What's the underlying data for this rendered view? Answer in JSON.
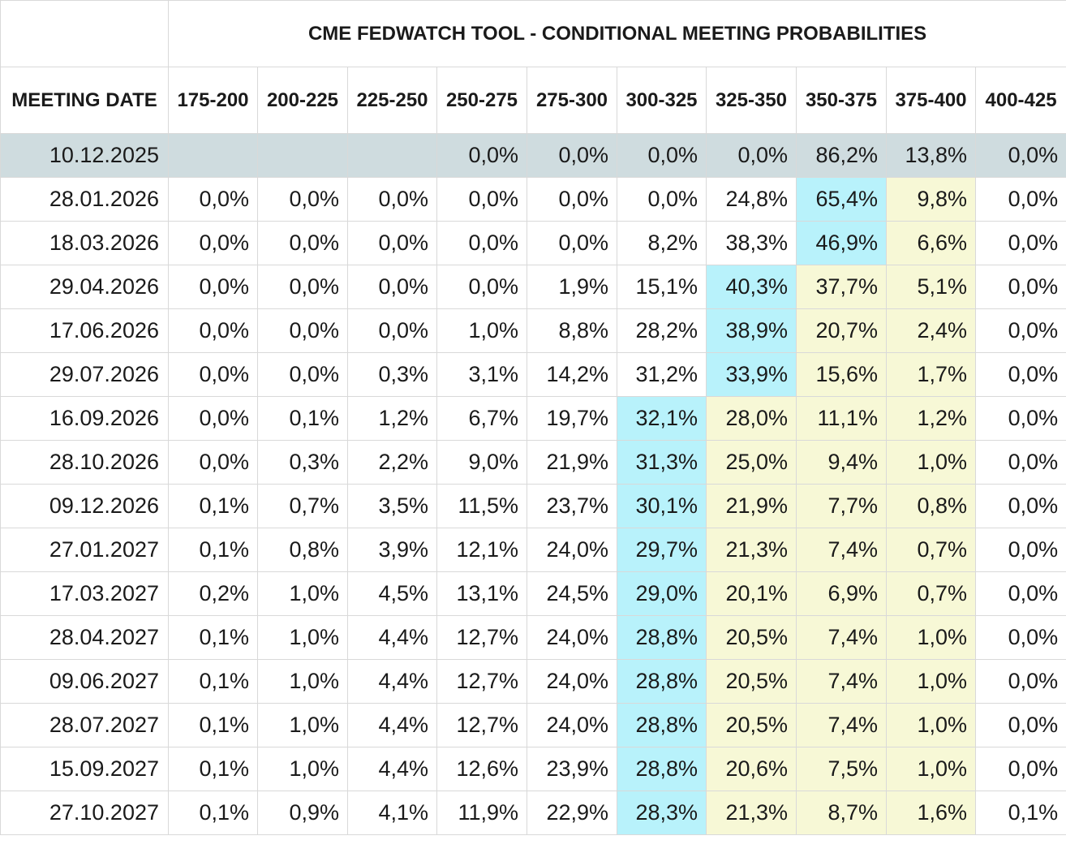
{
  "title": "CME FEDWATCH TOOL - CONDITIONAL MEETING PROBABILITIES",
  "columns": [
    "MEETING DATE",
    "175-200",
    "200-225",
    "225-250",
    "250-275",
    "275-300",
    "300-325",
    "325-350",
    "350-375",
    "375-400",
    "400-425"
  ],
  "colors": {
    "current_row": "#cfdcdf",
    "highlight_max": "#b8f2fb",
    "highlight_secondary": "#f7f8d6"
  },
  "chart_data": {
    "type": "table",
    "title": "CME FEDWATCH TOOL - CONDITIONAL MEETING PROBABILITIES",
    "columns": [
      "MEETING DATE",
      "175-200",
      "200-225",
      "225-250",
      "250-275",
      "275-300",
      "300-325",
      "325-350",
      "350-375",
      "375-400",
      "400-425"
    ],
    "rows": [
      {
        "date": "10.12.2025",
        "values": [
          "",
          "",
          "",
          "0,0%",
          "0,0%",
          "0,0%",
          "0,0%",
          "86,2%",
          "13,8%",
          "0,0%"
        ],
        "current": true
      },
      {
        "date": "28.01.2026",
        "values": [
          "0,0%",
          "0,0%",
          "0,0%",
          "0,0%",
          "0,0%",
          "0,0%",
          "24,8%",
          "65,4%",
          "9,8%",
          "0,0%"
        ],
        "blue": [
          7
        ],
        "yellow": [
          8
        ]
      },
      {
        "date": "18.03.2026",
        "values": [
          "0,0%",
          "0,0%",
          "0,0%",
          "0,0%",
          "0,0%",
          "8,2%",
          "38,3%",
          "46,9%",
          "6,6%",
          "0,0%"
        ],
        "blue": [
          7
        ],
        "yellow": [
          8
        ]
      },
      {
        "date": "29.04.2026",
        "values": [
          "0,0%",
          "0,0%",
          "0,0%",
          "0,0%",
          "1,9%",
          "15,1%",
          "40,3%",
          "37,7%",
          "5,1%",
          "0,0%"
        ],
        "blue": [
          6
        ],
        "yellow": [
          7,
          8
        ]
      },
      {
        "date": "17.06.2026",
        "values": [
          "0,0%",
          "0,0%",
          "0,0%",
          "1,0%",
          "8,8%",
          "28,2%",
          "38,9%",
          "20,7%",
          "2,4%",
          "0,0%"
        ],
        "blue": [
          6
        ],
        "yellow": [
          7,
          8
        ]
      },
      {
        "date": "29.07.2026",
        "values": [
          "0,0%",
          "0,0%",
          "0,3%",
          "3,1%",
          "14,2%",
          "31,2%",
          "33,9%",
          "15,6%",
          "1,7%",
          "0,0%"
        ],
        "blue": [
          6
        ],
        "yellow": [
          7,
          8
        ]
      },
      {
        "date": "16.09.2026",
        "values": [
          "0,0%",
          "0,1%",
          "1,2%",
          "6,7%",
          "19,7%",
          "32,1%",
          "28,0%",
          "11,1%",
          "1,2%",
          "0,0%"
        ],
        "blue": [
          5
        ],
        "yellow": [
          6,
          7,
          8
        ]
      },
      {
        "date": "28.10.2026",
        "values": [
          "0,0%",
          "0,3%",
          "2,2%",
          "9,0%",
          "21,9%",
          "31,3%",
          "25,0%",
          "9,4%",
          "1,0%",
          "0,0%"
        ],
        "blue": [
          5
        ],
        "yellow": [
          6,
          7,
          8
        ]
      },
      {
        "date": "09.12.2026",
        "values": [
          "0,1%",
          "0,7%",
          "3,5%",
          "11,5%",
          "23,7%",
          "30,1%",
          "21,9%",
          "7,7%",
          "0,8%",
          "0,0%"
        ],
        "blue": [
          5
        ],
        "yellow": [
          6,
          7,
          8
        ]
      },
      {
        "date": "27.01.2027",
        "values": [
          "0,1%",
          "0,8%",
          "3,9%",
          "12,1%",
          "24,0%",
          "29,7%",
          "21,3%",
          "7,4%",
          "0,7%",
          "0,0%"
        ],
        "blue": [
          5
        ],
        "yellow": [
          6,
          7,
          8
        ]
      },
      {
        "date": "17.03.2027",
        "values": [
          "0,2%",
          "1,0%",
          "4,5%",
          "13,1%",
          "24,5%",
          "29,0%",
          "20,1%",
          "6,9%",
          "0,7%",
          "0,0%"
        ],
        "blue": [
          5
        ],
        "yellow": [
          6,
          7,
          8
        ]
      },
      {
        "date": "28.04.2027",
        "values": [
          "0,1%",
          "1,0%",
          "4,4%",
          "12,7%",
          "24,0%",
          "28,8%",
          "20,5%",
          "7,4%",
          "1,0%",
          "0,0%"
        ],
        "blue": [
          5
        ],
        "yellow": [
          6,
          7,
          8
        ]
      },
      {
        "date": "09.06.2027",
        "values": [
          "0,1%",
          "1,0%",
          "4,4%",
          "12,7%",
          "24,0%",
          "28,8%",
          "20,5%",
          "7,4%",
          "1,0%",
          "0,0%"
        ],
        "blue": [
          5
        ],
        "yellow": [
          6,
          7,
          8
        ]
      },
      {
        "date": "28.07.2027",
        "values": [
          "0,1%",
          "1,0%",
          "4,4%",
          "12,7%",
          "24,0%",
          "28,8%",
          "20,5%",
          "7,4%",
          "1,0%",
          "0,0%"
        ],
        "blue": [
          5
        ],
        "yellow": [
          6,
          7,
          8
        ]
      },
      {
        "date": "15.09.2027",
        "values": [
          "0,1%",
          "1,0%",
          "4,4%",
          "12,6%",
          "23,9%",
          "28,8%",
          "20,6%",
          "7,5%",
          "1,0%",
          "0,0%"
        ],
        "blue": [
          5
        ],
        "yellow": [
          6,
          7,
          8
        ]
      },
      {
        "date": "27.10.2027",
        "values": [
          "0,1%",
          "0,9%",
          "4,1%",
          "11,9%",
          "22,9%",
          "28,3%",
          "21,3%",
          "8,7%",
          "1,6%",
          "0,1%"
        ],
        "blue": [
          5
        ],
        "yellow": [
          6,
          7,
          8
        ]
      }
    ]
  }
}
